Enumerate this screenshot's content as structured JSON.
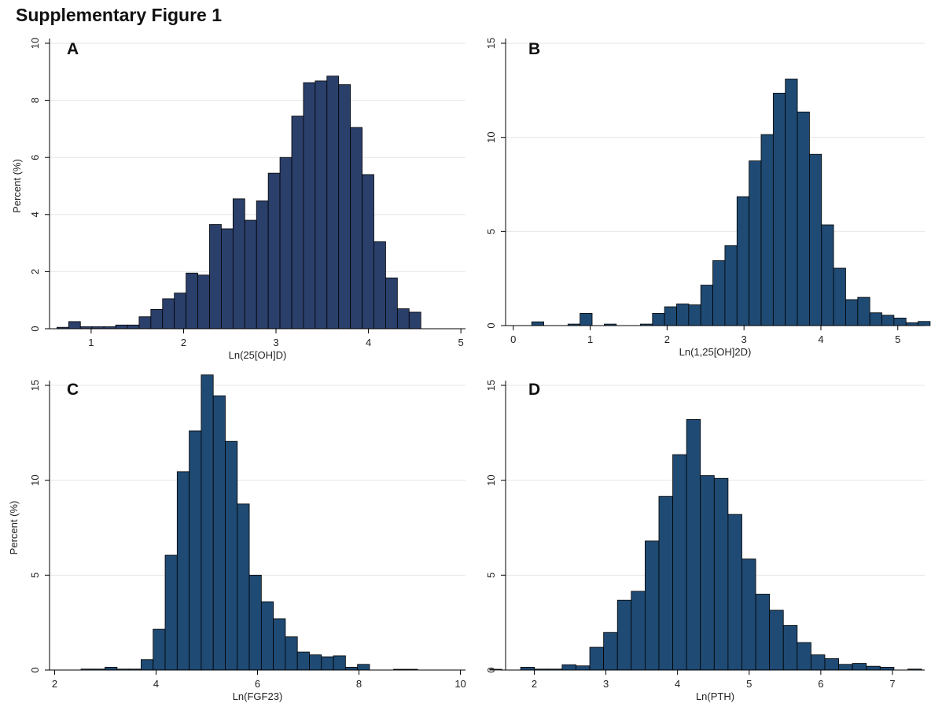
{
  "figure_title": "Supplementary Figure 1",
  "colors": {
    "bar_fill_A": "#2b3f6b",
    "bar_fill": "#1f4a73",
    "bar_stroke": "#000000",
    "grid": "#e6e6e6",
    "axis": "#000000"
  },
  "chart_data": [
    {
      "type": "bar",
      "panel_label": "A",
      "title": "",
      "xlabel": "Ln(25[OH]D)",
      "ylabel": "Percent (%)",
      "xlim": [
        0.55,
        5.05
      ],
      "ylim": [
        0,
        10
      ],
      "xticks": [
        1,
        2,
        3,
        4,
        5
      ],
      "yticks": [
        0,
        2,
        4,
        6,
        8,
        10
      ],
      "grid": true,
      "bins": {
        "start": 0.63,
        "width": 0.127
      },
      "values": [
        0.05,
        0.25,
        0.07,
        0.07,
        0.07,
        0.13,
        0.13,
        0.42,
        0.68,
        1.05,
        1.25,
        1.95,
        1.88,
        3.65,
        3.5,
        4.55,
        3.8,
        4.48,
        5.45,
        6.0,
        7.45,
        8.62,
        8.68,
        8.85,
        8.55,
        7.05,
        5.4,
        3.05,
        1.78,
        0.7,
        0.58
      ]
    },
    {
      "type": "bar",
      "panel_label": "B",
      "title": "",
      "xlabel": "Ln(1,25[OH]2D)",
      "ylabel": "",
      "xlim": [
        -0.1,
        5.35
      ],
      "ylim": [
        0,
        15
      ],
      "xticks": [
        0,
        1,
        2,
        3,
        4,
        5
      ],
      "yticks": [
        0,
        5,
        10,
        15
      ],
      "grid": true,
      "bins": {
        "start": 0.24,
        "width": 0.157
      },
      "values": [
        0.2,
        0.0,
        0.0,
        0.08,
        0.65,
        0.0,
        0.08,
        0.0,
        0.0,
        0.08,
        0.65,
        1.0,
        1.15,
        1.1,
        2.15,
        3.45,
        4.25,
        6.85,
        8.75,
        10.15,
        12.35,
        13.1,
        11.35,
        9.1,
        5.35,
        3.05,
        1.38,
        1.5,
        0.68,
        0.55,
        0.4,
        0.15,
        0.22
      ]
    },
    {
      "type": "bar",
      "panel_label": "C",
      "title": "",
      "xlabel": "Ln(FGF23)",
      "ylabel": "Percent (%)",
      "xlim": [
        1.9,
        10.1
      ],
      "ylim": [
        0,
        15
      ],
      "xticks": [
        2,
        4,
        6,
        8,
        10
      ],
      "yticks": [
        0,
        5,
        10,
        15
      ],
      "grid": true,
      "bins": {
        "start": 2.52,
        "width": 0.237
      },
      "values": [
        0.05,
        0.05,
        0.15,
        0.05,
        0.05,
        0.55,
        2.15,
        6.05,
        10.45,
        12.6,
        15.55,
        14.45,
        12.05,
        8.75,
        5.0,
        3.6,
        2.7,
        1.75,
        0.95,
        0.8,
        0.7,
        0.75,
        0.15,
        0.3,
        0.0,
        0.0,
        0.04,
        0.04,
        0.0,
        0.0,
        0.0,
        0.0,
        0.0,
        0.0,
        0.04
      ]
    },
    {
      "type": "bar",
      "panel_label": "D",
      "title": "",
      "xlabel": "Ln(PTH)",
      "ylabel": "",
      "xlim": [
        1.6,
        7.45
      ],
      "ylim": [
        0,
        15
      ],
      "xticks": [
        2,
        3,
        4,
        5,
        6,
        7
      ],
      "yticks": [
        0,
        5,
        10,
        15
      ],
      "grid": true,
      "bins": {
        "start": 1.81,
        "width": 0.193
      },
      "values": [
        0.15,
        0.05,
        0.05,
        0.28,
        0.22,
        1.2,
        1.98,
        3.68,
        4.15,
        6.8,
        9.15,
        11.35,
        13.2,
        10.25,
        10.1,
        8.2,
        5.85,
        4.0,
        3.15,
        2.35,
        1.45,
        0.8,
        0.6,
        0.3,
        0.35,
        0.2,
        0.15,
        0.0,
        0.05,
        0.0,
        0.15
      ]
    }
  ]
}
